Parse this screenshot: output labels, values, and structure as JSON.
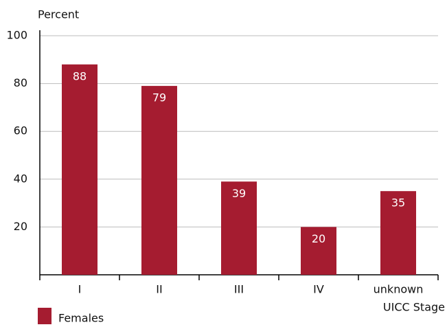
{
  "chart_data": {
    "type": "bar",
    "y_axis_label": "Percent",
    "x_axis_label": "UICC Stage",
    "legend": "Females",
    "categories": [
      "I",
      "II",
      "III",
      "IV",
      "unknown"
    ],
    "values": [
      88,
      79,
      39,
      20,
      35
    ],
    "color": "#a51c30",
    "ylim": [
      0,
      100
    ],
    "yticks": [
      20,
      40,
      60,
      80,
      100
    ],
    "grid": true
  }
}
